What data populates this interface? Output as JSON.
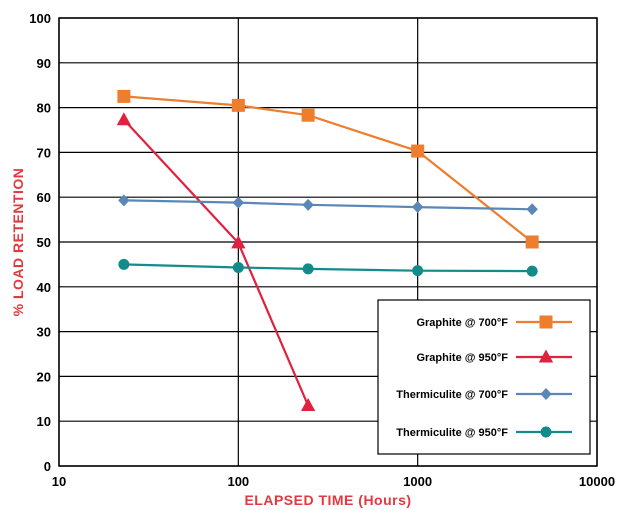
{
  "chart_data": {
    "type": "line",
    "x_scale": "log",
    "xlim": [
      10,
      10000
    ],
    "ylim": [
      0,
      100
    ],
    "xlabel": "ELAPSED TIME (Hours)",
    "ylabel": "% LOAD RETENTION",
    "xticks": [
      "10",
      "100",
      "1000",
      "10000"
    ],
    "yticks": [
      "0",
      "10",
      "20",
      "30",
      "40",
      "50",
      "60",
      "70",
      "80",
      "90",
      "100"
    ],
    "grid": true,
    "legend_position": "bottom-right",
    "axis_title_color": "#e03a3e",
    "series": [
      {
        "name": "Graphite @ 700°F",
        "color": "#ee7d2e",
        "marker": "square",
        "points": [
          [
            23,
            82.5
          ],
          [
            100,
            80.5
          ],
          [
            245,
            78.3
          ],
          [
            1000,
            70.3
          ],
          [
            4350,
            50
          ]
        ]
      },
      {
        "name": "Graphite @ 950°F",
        "color": "#e0213f",
        "marker": "triangle",
        "points": [
          [
            23,
            77.3
          ],
          [
            100,
            49.8
          ],
          [
            245,
            13.5
          ]
        ]
      },
      {
        "name": "Thermiculite @ 700°F",
        "color": "#5b87b8",
        "marker": "diamond",
        "points": [
          [
            23,
            59.3
          ],
          [
            100,
            58.8
          ],
          [
            245,
            58.3
          ],
          [
            1000,
            57.8
          ],
          [
            4350,
            57.3
          ]
        ]
      },
      {
        "name": "Thermiculite @ 950°F",
        "color": "#138b8a",
        "marker": "circle",
        "points": [
          [
            23,
            45
          ],
          [
            100,
            44.3
          ],
          [
            245,
            44
          ],
          [
            1000,
            43.6
          ],
          [
            4350,
            43.5
          ]
        ]
      }
    ]
  }
}
